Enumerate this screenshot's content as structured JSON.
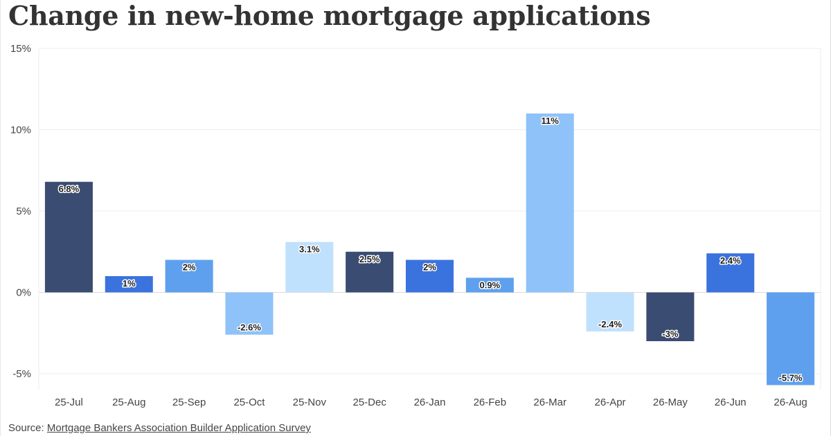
{
  "title": "Change in new-home mortgage applications",
  "source": {
    "prefix": "Source: ",
    "link_text": "Mortgage Bankers Association Builder Application Survey"
  },
  "colors": {
    "navy": "#3b4c72",
    "blue": "#3b73de",
    "mid": "#5fa0ee",
    "light": "#8fc2f8",
    "pale": "#c0e1fd"
  },
  "chart_data": {
    "type": "bar",
    "title": "Change in new-home mortgage applications",
    "xlabel": "",
    "ylabel": "",
    "ylim": [
      -6,
      15
    ],
    "yticks": [
      15,
      10,
      5,
      0,
      -5
    ],
    "ytick_labels": [
      "15%",
      "10%",
      "5%",
      "0%",
      "-5%"
    ],
    "categories": [
      "25-Jul",
      "25-Aug",
      "25-Sep",
      "25-Oct",
      "25-Nov",
      "25-Dec",
      "26-Jan",
      "26-Feb",
      "26-Mar",
      "26-Apr",
      "26-May",
      "26-Jun",
      "26-Aug"
    ],
    "values": [
      6.8,
      1,
      2,
      -2.6,
      3.1,
      2.5,
      2,
      0.9,
      11,
      -2.4,
      -3,
      2.4,
      -5.7
    ],
    "data_labels": [
      "6.8%",
      "1%",
      "2%",
      "-2.6%",
      "3.1%",
      "2.5%",
      "2%",
      "0.9%",
      "11%",
      "-2.4%",
      "-3%",
      "2.4%",
      "-5.7%"
    ],
    "bar_colors": [
      "#3b4c72",
      "#3b73de",
      "#5fa0ee",
      "#8fc2f8",
      "#c0e1fd",
      "#3b4c72",
      "#3b73de",
      "#5fa0ee",
      "#8fc2f8",
      "#c0e1fd",
      "#3b4c72",
      "#3b73de",
      "#5fa0ee"
    ],
    "grid": true
  }
}
